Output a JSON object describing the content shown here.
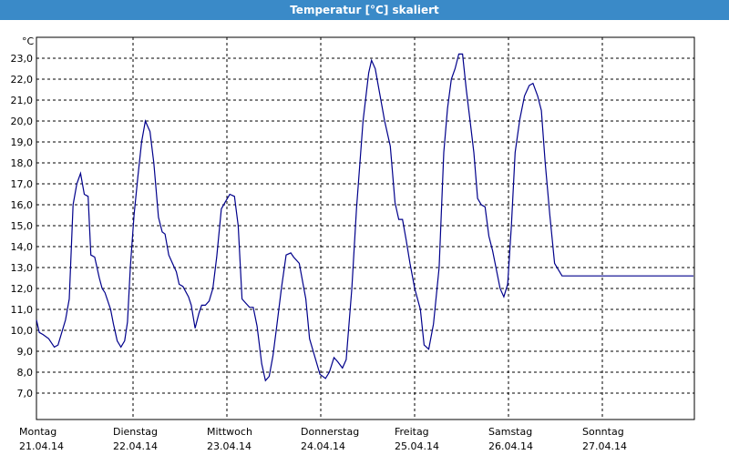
{
  "window": {
    "title": "Temperatur [°C] skaliert",
    "title_bar_color": "#3a8ac8"
  },
  "chart_data": {
    "type": "line",
    "title": "Temperatur [°C] skaliert",
    "ylabel": "°C",
    "xlabel": "",
    "ylim": [
      7.0,
      23.0
    ],
    "xlim": [
      0,
      7
    ],
    "y_ticks": [
      "7,0",
      "8,0",
      "9,0",
      "10,0",
      "11,0",
      "12,0",
      "13,0",
      "14,0",
      "15,0",
      "16,0",
      "17,0",
      "18,0",
      "19,0",
      "20,0",
      "21,0",
      "22,0",
      "23,0"
    ],
    "x_ticks": [
      {
        "day": "Montag",
        "date": "21.04.14"
      },
      {
        "day": "Dienstag",
        "date": "22.04.14"
      },
      {
        "day": "Mittwoch",
        "date": "23.04.14"
      },
      {
        "day": "Donnerstag",
        "date": "24.04.14"
      },
      {
        "day": "Freitag",
        "date": "25.04.14"
      },
      {
        "day": "Samstag",
        "date": "26.04.14"
      },
      {
        "day": "Sonntag",
        "date": "27.04.14"
      }
    ],
    "grid": true,
    "line_color": "#00008b",
    "series": [
      {
        "x": [
          0.0,
          0.03,
          0.07,
          0.13,
          0.19,
          0.23,
          0.27,
          0.31,
          0.35,
          0.39,
          0.43,
          0.47,
          0.51,
          0.55,
          0.58,
          0.62,
          0.67,
          0.7,
          0.73,
          0.79,
          0.82,
          0.86,
          0.9,
          0.94,
          0.97,
          1.0,
          1.04,
          1.08,
          1.12,
          1.16,
          1.21,
          1.25,
          1.3,
          1.34,
          1.37,
          1.41,
          1.45,
          1.49,
          1.52,
          1.56,
          1.62,
          1.65,
          1.69,
          1.73,
          1.76,
          1.8,
          1.84,
          1.88,
          1.92,
          1.97,
          2.02,
          2.06,
          2.11,
          2.15,
          2.19,
          2.23,
          2.27,
          2.31,
          2.35,
          2.4,
          2.44,
          2.48,
          2.52,
          2.56,
          2.61,
          2.66,
          2.71,
          2.74,
          2.8,
          2.87,
          2.91,
          3.02,
          3.08,
          3.12,
          3.17,
          3.21,
          3.26,
          3.3,
          3.36,
          3.41,
          3.48,
          3.54,
          3.57,
          3.61,
          3.65,
          3.71,
          3.77,
          3.82,
          3.86,
          3.9,
          3.94,
          3.98,
          4.03,
          4.09,
          4.13,
          4.18,
          4.23,
          4.29,
          4.34,
          4.38,
          4.42,
          4.46,
          4.5,
          4.54,
          4.58,
          4.62,
          4.66,
          4.7,
          4.74,
          4.78,
          4.82,
          4.86,
          4.9,
          4.94,
          4.98,
          5.02,
          5.06,
          5.1,
          5.15,
          5.2,
          5.25,
          5.29,
          5.34,
          5.38,
          5.42,
          5.47,
          5.52,
          5.56,
          5.6,
          5.64,
          5.69,
          5.74,
          5.79,
          5.84,
          5.88,
          5.92,
          5.96,
          6.0,
          6.05,
          6.1,
          6.15,
          6.2,
          6.25,
          6.3,
          6.34,
          6.39,
          6.44,
          6.49,
          6.53,
          6.57,
          6.61,
          6.65,
          6.69,
          6.74,
          6.79,
          6.84,
          6.88,
          6.92,
          6.96,
          7.0
        ],
        "values": [
          10.5,
          9.9,
          9.8,
          9.6,
          9.2,
          9.3,
          9.9,
          10.5,
          11.5,
          16.0,
          17.0,
          17.5,
          16.5,
          16.4,
          13.6,
          13.5,
          12.5,
          12.0,
          11.8,
          11.0,
          10.3,
          9.5,
          9.2,
          9.5,
          10.4,
          13.0,
          15.5,
          17.3,
          19.0,
          20.0,
          19.5,
          18.0,
          15.4,
          14.7,
          14.6,
          13.6,
          13.2,
          12.8,
          12.2,
          12.1,
          11.6,
          11.2,
          10.1,
          10.8,
          11.2,
          11.2,
          11.4,
          12.0,
          13.5,
          15.8,
          16.2,
          16.5,
          16.4,
          15.0,
          11.5,
          11.3,
          11.1,
          11.1,
          10.2,
          8.4,
          7.6,
          7.8,
          8.8,
          10.2,
          12.0,
          13.6,
          13.7,
          13.5,
          13.2,
          11.5,
          9.6,
          7.9,
          7.7,
          8.0,
          8.7,
          8.5,
          8.2,
          8.6,
          12.0,
          15.8,
          20.0,
          22.3,
          22.9,
          22.5,
          21.5,
          20.0,
          18.8,
          16.1,
          15.3,
          15.3,
          14.3,
          13.2,
          12.0,
          11.0,
          9.3,
          9.1,
          10.3,
          13.0,
          18.5,
          20.6,
          22.0,
          22.5,
          23.2,
          23.2,
          21.5,
          20.0,
          18.5,
          16.3,
          16.0,
          15.9,
          14.5,
          13.8,
          12.9,
          12.0,
          11.6,
          12.2,
          15.0,
          18.5,
          20.1,
          21.2,
          21.7,
          21.8,
          21.2,
          20.5,
          18.0,
          15.5,
          13.2,
          12.9,
          12.6,
          12.6,
          12.6,
          12.6,
          12.6,
          12.6,
          12.6,
          12.6,
          12.6,
          12.6,
          12.6,
          12.6,
          12.6,
          12.6,
          12.6,
          12.6,
          12.6,
          12.6,
          12.6,
          12.6,
          12.6,
          12.6,
          12.6,
          12.6,
          12.6,
          12.6,
          12.6,
          12.6,
          12.6,
          12.6,
          12.6,
          12.6
        ]
      }
    ]
  }
}
